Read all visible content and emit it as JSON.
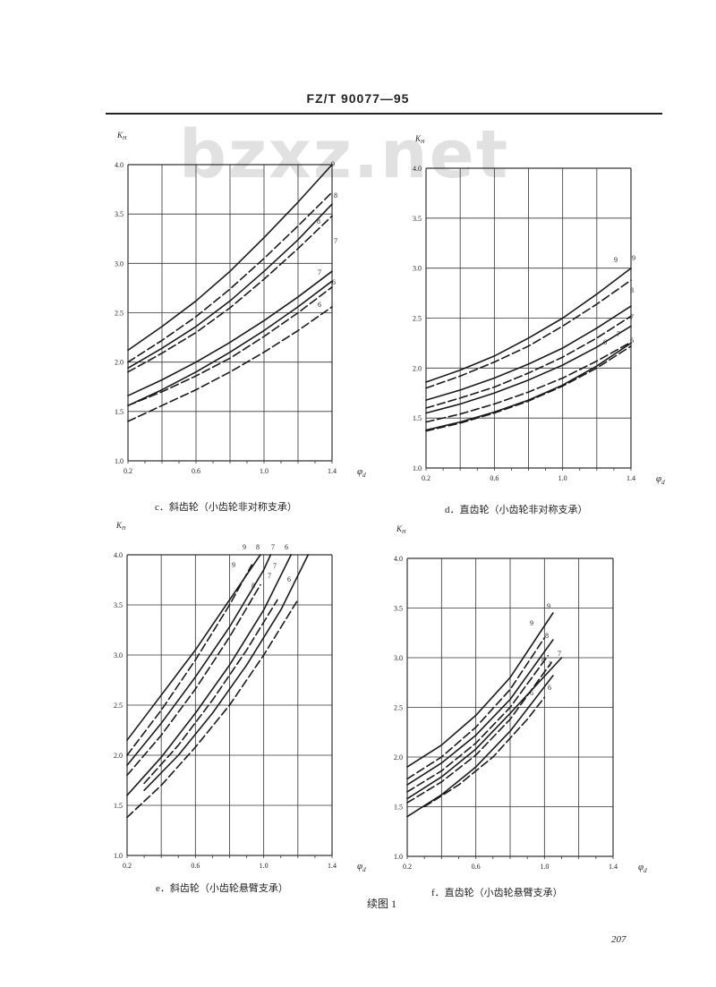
{
  "header": {
    "standard": "FZ/T 90077—95"
  },
  "watermark": "bzxz.net",
  "figure_caption": "续图 1",
  "page_number": "207",
  "chart_data": [
    {
      "type": "line",
      "caption": "c．斜齿轮（小齿轮非对称支承）",
      "ylabel": "K_H",
      "xlabel": "φ_d",
      "xlim": [
        0.2,
        1.4
      ],
      "ylim": [
        1.0,
        4.0
      ],
      "x_ticks": [
        0.2,
        0.6,
        1.0,
        1.4
      ],
      "y_ticks": [
        1.0,
        1.5,
        2.0,
        2.5,
        3.0,
        3.5,
        4.0
      ],
      "grid": true,
      "series": [
        {
          "name": "9",
          "style": "solid",
          "x": [
            0.2,
            0.4,
            0.6,
            0.8,
            1.0,
            1.2,
            1.4
          ],
          "y": [
            2.12,
            2.36,
            2.62,
            2.92,
            3.26,
            3.62,
            4.0
          ]
        },
        {
          "name": "9",
          "style": "dashed",
          "x": [
            0.2,
            0.4,
            0.6,
            0.8,
            1.0,
            1.2,
            1.4
          ],
          "y": [
            2.0,
            2.22,
            2.46,
            2.74,
            3.05,
            3.38,
            3.72
          ]
        },
        {
          "name": "8",
          "style": "solid",
          "x": [
            0.2,
            0.4,
            0.6,
            0.8,
            1.0,
            1.2,
            1.4
          ],
          "y": [
            1.94,
            2.14,
            2.36,
            2.62,
            2.92,
            3.24,
            3.6
          ]
        },
        {
          "name": "8",
          "style": "dashed",
          "x": [
            0.2,
            0.4,
            0.6,
            0.8,
            1.0,
            1.2,
            1.4
          ],
          "y": [
            1.9,
            2.09,
            2.3,
            2.55,
            2.84,
            3.15,
            3.48
          ]
        },
        {
          "name": "7",
          "style": "solid",
          "x": [
            0.2,
            0.4,
            0.6,
            0.8,
            1.0,
            1.2,
            1.4
          ],
          "y": [
            1.66,
            1.82,
            2.0,
            2.2,
            2.42,
            2.66,
            2.92
          ]
        },
        {
          "name": "7",
          "style": "dashed",
          "x": [
            0.2,
            0.4,
            0.6,
            0.8,
            1.0,
            1.2,
            1.4
          ],
          "y": [
            1.56,
            1.7,
            1.86,
            2.04,
            2.26,
            2.5,
            2.76
          ]
        },
        {
          "name": "6",
          "style": "solid",
          "x": [
            0.2,
            0.4,
            0.6,
            0.8,
            1.0,
            1.2,
            1.4
          ],
          "y": [
            1.56,
            1.72,
            1.9,
            2.1,
            2.32,
            2.56,
            2.82
          ]
        },
        {
          "name": "6",
          "style": "dashed",
          "x": [
            0.2,
            0.4,
            0.6,
            0.8,
            1.0,
            1.2,
            1.4
          ],
          "y": [
            1.4,
            1.56,
            1.72,
            1.9,
            2.1,
            2.32,
            2.56
          ]
        }
      ],
      "curve_labels": [
        "9",
        "8",
        "8",
        "7",
        "7",
        "6",
        "6"
      ]
    },
    {
      "type": "line",
      "caption": "d．直齿轮（小齿轮非对称支承）",
      "ylabel": "K_H",
      "xlabel": "φ_d",
      "xlim": [
        0.2,
        1.4
      ],
      "ylim": [
        1.0,
        4.0
      ],
      "x_ticks": [
        0.2,
        0.6,
        1.0,
        1.4
      ],
      "y_ticks": [
        1.0,
        1.5,
        2.0,
        2.5,
        3.0,
        3.5,
        4.0
      ],
      "grid": true,
      "series": [
        {
          "name": "9",
          "style": "solid",
          "x": [
            0.2,
            0.4,
            0.6,
            0.8,
            1.0,
            1.2,
            1.4
          ],
          "y": [
            1.86,
            1.98,
            2.12,
            2.3,
            2.5,
            2.74,
            3.0
          ]
        },
        {
          "name": "9",
          "style": "dashed",
          "x": [
            0.2,
            0.4,
            0.6,
            0.8,
            1.0,
            1.2,
            1.4
          ],
          "y": [
            1.8,
            1.92,
            2.06,
            2.22,
            2.42,
            2.64,
            2.88
          ]
        },
        {
          "name": "8",
          "style": "solid",
          "x": [
            0.2,
            0.4,
            0.6,
            0.8,
            1.0,
            1.2,
            1.4
          ],
          "y": [
            1.68,
            1.78,
            1.9,
            2.04,
            2.2,
            2.4,
            2.62
          ]
        },
        {
          "name": "8",
          "style": "dashed",
          "x": [
            0.2,
            0.4,
            0.6,
            0.8,
            1.0,
            1.2,
            1.4
          ],
          "y": [
            1.6,
            1.7,
            1.81,
            1.95,
            2.11,
            2.3,
            2.52
          ]
        },
        {
          "name": "7",
          "style": "solid",
          "x": [
            0.2,
            0.4,
            0.6,
            0.8,
            1.0,
            1.2,
            1.4
          ],
          "y": [
            1.55,
            1.64,
            1.75,
            1.88,
            2.03,
            2.21,
            2.42
          ]
        },
        {
          "name": "7",
          "style": "dashed",
          "x": [
            0.2,
            0.4,
            0.6,
            0.8,
            1.0,
            1.2,
            1.4
          ],
          "y": [
            1.46,
            1.54,
            1.64,
            1.76,
            1.9,
            2.07,
            2.26
          ]
        },
        {
          "name": "6",
          "style": "solid",
          "x": [
            0.2,
            0.4,
            0.6,
            0.8,
            1.0,
            1.2,
            1.4
          ],
          "y": [
            1.38,
            1.46,
            1.56,
            1.68,
            1.83,
            2.02,
            2.25
          ]
        },
        {
          "name": "6",
          "style": "dashed",
          "x": [
            0.2,
            0.4,
            0.6,
            0.8,
            1.0,
            1.2,
            1.4
          ],
          "y": [
            1.37,
            1.45,
            1.55,
            1.67,
            1.82,
            2.0,
            2.22
          ]
        }
      ],
      "curve_labels": [
        "9",
        "9",
        "8",
        "7",
        "7",
        "6",
        "6"
      ]
    },
    {
      "type": "line",
      "caption": "e．斜齿轮（小齿轮悬臂支承）",
      "ylabel": "K_H",
      "xlabel": "φ_d",
      "xlim": [
        0.2,
        1.4
      ],
      "ylim": [
        1.0,
        4.0
      ],
      "x_ticks": [
        0.2,
        0.6,
        1.0,
        1.4
      ],
      "y_ticks": [
        1.0,
        1.5,
        2.0,
        2.5,
        3.0,
        3.5,
        4.0
      ],
      "grid": true,
      "series": [
        {
          "name": "9",
          "style": "solid",
          "x": [
            0.2,
            0.4,
            0.6,
            0.8,
            0.98
          ],
          "y": [
            2.15,
            2.6,
            3.05,
            3.55,
            4.0
          ]
        },
        {
          "name": "9",
          "style": "dashed",
          "x": [
            0.2,
            0.4,
            0.6,
            0.8,
            0.93
          ],
          "y": [
            2.0,
            2.45,
            2.95,
            3.5,
            3.9
          ]
        },
        {
          "name": "8",
          "style": "solid",
          "x": [
            0.2,
            0.4,
            0.6,
            0.8,
            1.0,
            1.04
          ],
          "y": [
            1.9,
            2.32,
            2.78,
            3.28,
            3.85,
            4.0
          ]
        },
        {
          "name": "8",
          "style": "dashed",
          "x": [
            0.2,
            0.4,
            0.6,
            0.8,
            0.98
          ],
          "y": [
            1.8,
            2.2,
            2.66,
            3.18,
            3.7
          ]
        },
        {
          "name": "7",
          "style": "solid",
          "x": [
            0.2,
            0.4,
            0.6,
            0.8,
            1.0,
            1.16
          ],
          "y": [
            1.6,
            1.98,
            2.42,
            2.9,
            3.45,
            4.0
          ]
        },
        {
          "name": "7",
          "style": "dashed",
          "x": [
            0.3,
            0.5,
            0.7,
            0.9,
            1.08
          ],
          "y": [
            1.72,
            2.1,
            2.55,
            3.05,
            3.55
          ]
        },
        {
          "name": "6",
          "style": "solid",
          "x": [
            0.3,
            0.5,
            0.7,
            0.9,
            1.1,
            1.26
          ],
          "y": [
            1.65,
            2.0,
            2.42,
            2.9,
            3.45,
            4.0
          ]
        },
        {
          "name": "6",
          "style": "dashed",
          "x": [
            0.2,
            0.4,
            0.6,
            0.8,
            1.0,
            1.2
          ],
          "y": [
            1.38,
            1.7,
            2.08,
            2.5,
            3.0,
            3.55
          ]
        }
      ],
      "curve_labels": [
        "9",
        "9",
        "8",
        "8",
        "7",
        "7",
        "7",
        "6",
        "6"
      ]
    },
    {
      "type": "line",
      "caption": "f．直齿轮（小齿轮悬臂支承）",
      "ylabel": "K_H",
      "xlabel": "φ_d",
      "xlim": [
        0.2,
        1.4
      ],
      "ylim": [
        1.0,
        4.0
      ],
      "x_ticks": [
        0.2,
        0.6,
        1.0,
        1.4
      ],
      "y_ticks": [
        1.0,
        1.5,
        2.0,
        2.5,
        3.0,
        3.5,
        4.0
      ],
      "grid": true,
      "series": [
        {
          "name": "9",
          "style": "solid",
          "x": [
            0.2,
            0.4,
            0.6,
            0.8,
            1.05
          ],
          "y": [
            1.9,
            2.12,
            2.42,
            2.8,
            3.45
          ]
        },
        {
          "name": "9",
          "style": "dashed",
          "x": [
            0.2,
            0.4,
            0.6,
            0.8,
            1.0
          ],
          "y": [
            1.78,
            2.0,
            2.3,
            2.68,
            3.2
          ]
        },
        {
          "name": "8",
          "style": "solid",
          "x": [
            0.2,
            0.4,
            0.6,
            0.8,
            1.05
          ],
          "y": [
            1.72,
            1.94,
            2.22,
            2.58,
            3.18
          ]
        },
        {
          "name": "8",
          "style": "dashed",
          "x": [
            0.2,
            0.4,
            0.6,
            0.8,
            1.02
          ],
          "y": [
            1.65,
            1.86,
            2.14,
            2.5,
            3.02
          ]
        },
        {
          "name": "7",
          "style": "solid",
          "x": [
            0.2,
            0.4,
            0.6,
            0.8,
            1.1
          ],
          "y": [
            1.58,
            1.8,
            2.08,
            2.44,
            3.0
          ]
        },
        {
          "name": "7",
          "style": "dashed",
          "x": [
            0.2,
            0.4,
            0.6,
            0.8,
            1.04
          ],
          "y": [
            1.54,
            1.75,
            2.02,
            2.38,
            2.95
          ]
        },
        {
          "name": "6",
          "style": "solid",
          "x": [
            0.2,
            0.4,
            0.6,
            0.8,
            1.05
          ],
          "y": [
            1.4,
            1.62,
            1.9,
            2.26,
            2.82
          ]
        },
        {
          "name": "6",
          "style": "dashed",
          "x": [
            0.3,
            0.5,
            0.7,
            0.9,
            1.0
          ],
          "y": [
            1.5,
            1.72,
            2.0,
            2.38,
            2.6
          ]
        }
      ],
      "curve_labels": [
        "9",
        "9",
        "8",
        "8",
        "7",
        "7",
        "6",
        "6"
      ]
    }
  ]
}
